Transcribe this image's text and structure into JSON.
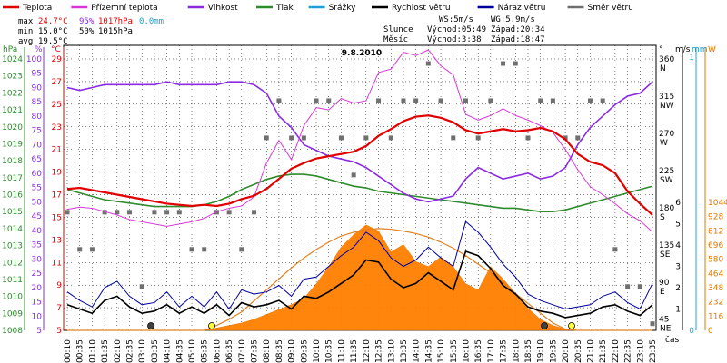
{
  "chart_data": {
    "type": "line",
    "title": "9.8.2010",
    "legend": [
      {
        "name": "Teplota",
        "color": "#e00000"
      },
      {
        "name": "Přízemní teplota",
        "color": "#d838d8"
      },
      {
        "name": "Vlhkost",
        "color": "#8a2be2"
      },
      {
        "name": "Tlak",
        "color": "#2e8b2e"
      },
      {
        "name": "Srážky",
        "color": "#20a0d0"
      },
      {
        "name": "Rychlost větru",
        "color": "#000000"
      },
      {
        "name": "Náraz větru",
        "color": "#0000a0"
      },
      {
        "name": "Směr větru",
        "color": "#707070"
      }
    ],
    "stats": {
      "max": {
        "label": "max",
        "temp": "24.7°C",
        "hum": "95%",
        "press": "1017hPa",
        "rain": "0.0mm"
      },
      "min": {
        "label": "min",
        "temp": "15.0°C",
        "hum": "50%",
        "press": "1015hPa"
      },
      "avg": {
        "label": "avg",
        "temp": "19.5°C"
      }
    },
    "info": {
      "ws": "WS:5m/s",
      "wg": "WG:5.9m/s",
      "sun_label": "Slunce",
      "sun_rise": "Východ:05:49",
      "sun_set": "Západ:20:34",
      "moon_label": "Měsíc",
      "moon_rise": "Východ:3:38",
      "moon_set": "Západ:18:47"
    },
    "axes": {
      "hpa": {
        "unit": "hPa",
        "ticks": [
          "1008",
          "1009",
          "1010",
          "1011",
          "1012",
          "1013",
          "1014",
          "1015",
          "1016",
          "1017",
          "1018",
          "1019",
          "1020",
          "1021",
          "1022",
          "1023",
          "1024"
        ],
        "color": "#2e8b2e"
      },
      "pct": {
        "unit": "%",
        "ticks": [
          "5",
          "10",
          "15",
          "20",
          "25",
          "30",
          "35",
          "40",
          "45",
          "50",
          "55",
          "60",
          "65",
          "70",
          "75",
          "80",
          "85",
          "90",
          "95",
          "100"
        ],
        "color": "#8a2be2"
      },
      "temp": {
        "unit": "°C",
        "ticks": [
          "5",
          "7",
          "9",
          "11",
          "13",
          "15",
          "17",
          "19",
          "21",
          "23",
          "25",
          "27",
          "29"
        ],
        "color": "#e00000"
      },
      "dir": {
        "unit": "°",
        "ticks": [
          {
            "v": "45",
            "s": "NE"
          },
          {
            "v": "90",
            "s": "E"
          },
          {
            "v": "135",
            "s": "SE"
          },
          {
            "v": "180",
            "s": "S"
          },
          {
            "v": "225",
            "s": "SW"
          },
          {
            "v": "270",
            "s": "W"
          },
          {
            "v": "315",
            "s": "NW"
          },
          {
            "v": "360",
            "s": "N"
          }
        ]
      },
      "ms": {
        "unit": "m/s",
        "ticks": [
          "1",
          "2",
          "3",
          "4",
          "5",
          "6"
        ]
      },
      "mm": {
        "unit": "mm",
        "ticks": [
          "0",
          "1"
        ],
        "color": "#20a0d0"
      },
      "w": {
        "unit": "W",
        "ticks": [
          "0",
          "116",
          "232",
          "348",
          "464",
          "580",
          "696",
          "812",
          "928",
          "1044"
        ],
        "color": "#e07800"
      },
      "time": {
        "unit": "čas",
        "ticks": [
          "00:10",
          "00:35",
          "01:10",
          "01:35",
          "02:10",
          "02:35",
          "03:10",
          "03:35",
          "04:10",
          "04:35",
          "05:10",
          "05:35",
          "06:10",
          "06:35",
          "07:10",
          "07:35",
          "08:10",
          "08:35",
          "09:10",
          "09:35",
          "10:10",
          "10:35",
          "11:10",
          "11:35",
          "12:10",
          "12:35",
          "13:10",
          "13:35",
          "14:10",
          "14:35",
          "15:10",
          "15:35",
          "16:10",
          "16:35",
          "17:10",
          "17:35",
          "18:10",
          "18:35",
          "19:10",
          "19:35",
          "20:10",
          "20:35",
          "21:10",
          "21:35",
          "22:10",
          "22:35",
          "23:10",
          "23:35"
        ]
      }
    },
    "series": {
      "teplota": [
        17.5,
        17.6,
        17.4,
        17.2,
        17.0,
        16.8,
        16.6,
        16.4,
        16.2,
        16.1,
        16.0,
        16.1,
        16.0,
        16.2,
        16.6,
        16.9,
        17.5,
        18.4,
        19.3,
        19.8,
        20.2,
        20.4,
        20.6,
        20.8,
        21.3,
        22.2,
        22.8,
        23.5,
        23.9,
        24.0,
        23.8,
        23.4,
        22.7,
        22.4,
        22.6,
        22.8,
        22.6,
        22.7,
        22.9,
        22.6,
        21.9,
        20.6,
        19.9,
        19.6,
        18.9,
        17.3,
        16.2,
        15.2
      ],
      "prizemni": [
        15.7,
        15.9,
        15.8,
        15.5,
        15.2,
        14.8,
        14.6,
        14.4,
        14.2,
        14.4,
        14.6,
        14.9,
        15.5,
        15.8,
        16.0,
        16.8,
        19.8,
        21.8,
        20.1,
        23.1,
        24.7,
        24.5,
        25.5,
        25.1,
        25.3,
        27.8,
        28.1,
        29.6,
        29.3,
        29.8,
        28.4,
        27.6,
        24.1,
        23.6,
        24.0,
        24.6,
        24.0,
        23.6,
        23.1,
        22.5,
        21.0,
        19.2,
        17.7,
        17.0,
        16.2,
        15.3,
        14.7,
        13.7
      ],
      "vlhkost": [
        90,
        89,
        90,
        91,
        91,
        91,
        91,
        91,
        92,
        91,
        91,
        91,
        91,
        92,
        92,
        91,
        88,
        80,
        76,
        70,
        68,
        66,
        65,
        64,
        62,
        59,
        56,
        53,
        51,
        50,
        51,
        52,
        58,
        62,
        60,
        58,
        59,
        60,
        58,
        59,
        62,
        70,
        76,
        80,
        84,
        87,
        88,
        92
      ],
      "tlak": [
        1016.3,
        1016.1,
        1015.9,
        1015.7,
        1015.6,
        1015.5,
        1015.4,
        1015.3,
        1015.3,
        1015.3,
        1015.3,
        1015.4,
        1015.6,
        1015.9,
        1016.3,
        1016.6,
        1016.9,
        1017.1,
        1017.2,
        1017.2,
        1017.1,
        1016.9,
        1016.7,
        1016.5,
        1016.4,
        1016.2,
        1016.1,
        1016.0,
        1015.9,
        1015.8,
        1015.7,
        1015.6,
        1015.5,
        1015.4,
        1015.3,
        1015.2,
        1015.2,
        1015.1,
        1015.0,
        1015.0,
        1015.1,
        1015.3,
        1015.5,
        1015.7,
        1015.9,
        1016.1,
        1016.3,
        1016.5
      ],
      "rychlost": [
        1.2,
        1.0,
        0.8,
        1.4,
        1.6,
        1.1,
        0.8,
        0.9,
        1.2,
        0.8,
        1.1,
        0.8,
        1.2,
        0.7,
        1.3,
        1.1,
        1.2,
        1.4,
        1.0,
        1.6,
        1.5,
        1.8,
        2.2,
        2.6,
        3.3,
        3.2,
        2.4,
        2.0,
        2.2,
        2.7,
        2.3,
        1.9,
        3.7,
        3.5,
        2.9,
        2.1,
        1.7,
        1.1,
        0.9,
        0.8,
        0.6,
        0.7,
        0.8,
        1.1,
        1.2,
        0.9,
        0.7,
        1.2
      ],
      "naraz": [
        1.8,
        1.4,
        1.1,
        2.0,
        2.3,
        1.6,
        1.2,
        1.3,
        1.8,
        1.1,
        1.6,
        1.1,
        1.8,
        1.0,
        1.9,
        1.7,
        1.8,
        2.1,
        1.6,
        2.4,
        2.5,
        3.0,
        3.5,
        3.9,
        4.6,
        4.2,
        3.4,
        3.0,
        3.3,
        3.9,
        3.4,
        3.0,
        5.1,
        4.6,
        3.9,
        3.1,
        2.5,
        1.7,
        1.4,
        1.2,
        1.0,
        1.1,
        1.2,
        1.6,
        1.8,
        1.3,
        1.0,
        2.2
      ],
      "smer": [
        180,
        135,
        135,
        180,
        180,
        180,
        90,
        180,
        180,
        180,
        135,
        135,
        180,
        180,
        135,
        180,
        270,
        315,
        270,
        270,
        315,
        315,
        270,
        225,
        270,
        315,
        270,
        315,
        315,
        360,
        315,
        270,
        315,
        270,
        315,
        360,
        360,
        270,
        315,
        315,
        270,
        270,
        315,
        315,
        135,
        90,
        90,
        45
      ],
      "zareni": [
        0,
        0,
        0,
        0,
        0,
        0,
        0,
        0,
        0,
        0,
        0,
        0,
        20,
        40,
        60,
        90,
        130,
        170,
        210,
        260,
        380,
        520,
        680,
        780,
        860,
        810,
        640,
        700,
        560,
        520,
        600,
        520,
        380,
        330,
        520,
        420,
        300,
        180,
        90,
        40,
        10,
        0,
        0,
        0,
        0,
        0,
        0,
        0
      ],
      "zareni_max": [
        0,
        0,
        0,
        0,
        0,
        0,
        0,
        0,
        0,
        0,
        0,
        0,
        40,
        90,
        150,
        240,
        330,
        420,
        510,
        590,
        660,
        720,
        770,
        800,
        820,
        830,
        825,
        810,
        790,
        760,
        720,
        670,
        610,
        540,
        470,
        390,
        300,
        220,
        140,
        60,
        10,
        0,
        0,
        0,
        0,
        0,
        0,
        0
      ]
    }
  }
}
